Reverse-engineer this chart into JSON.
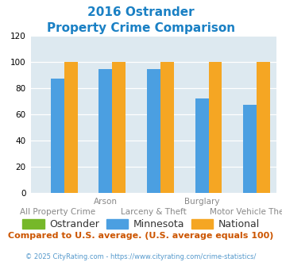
{
  "title_line1": "2016 Ostrander",
  "title_line2": "Property Crime Comparison",
  "categories": [
    "All Property Crime",
    "Arson",
    "Larceny & Theft",
    "Burglary",
    "Motor Vehicle Theft"
  ],
  "ostrander_values": [
    0,
    0,
    0,
    0,
    0
  ],
  "minnesota_values": [
    87,
    94,
    94,
    72,
    67
  ],
  "national_values": [
    100,
    100,
    100,
    100,
    100
  ],
  "ostrander_color": "#76b82a",
  "minnesota_color": "#4b9fe1",
  "national_color": "#f5a623",
  "ylim": [
    0,
    120
  ],
  "yticks": [
    0,
    20,
    40,
    60,
    80,
    100,
    120
  ],
  "plot_bg_color": "#dde9f0",
  "title_color": "#1a80c4",
  "subtitle_note": "Compared to U.S. average. (U.S. average equals 100)",
  "subtitle_note_color": "#cc5500",
  "copyright_text": "© 2025 CityRating.com - https://www.cityrating.com/crime-statistics/",
  "copyright_color": "#5599cc",
  "legend_labels": [
    "Ostrander",
    "Minnesota",
    "National"
  ],
  "bar_width": 0.28
}
